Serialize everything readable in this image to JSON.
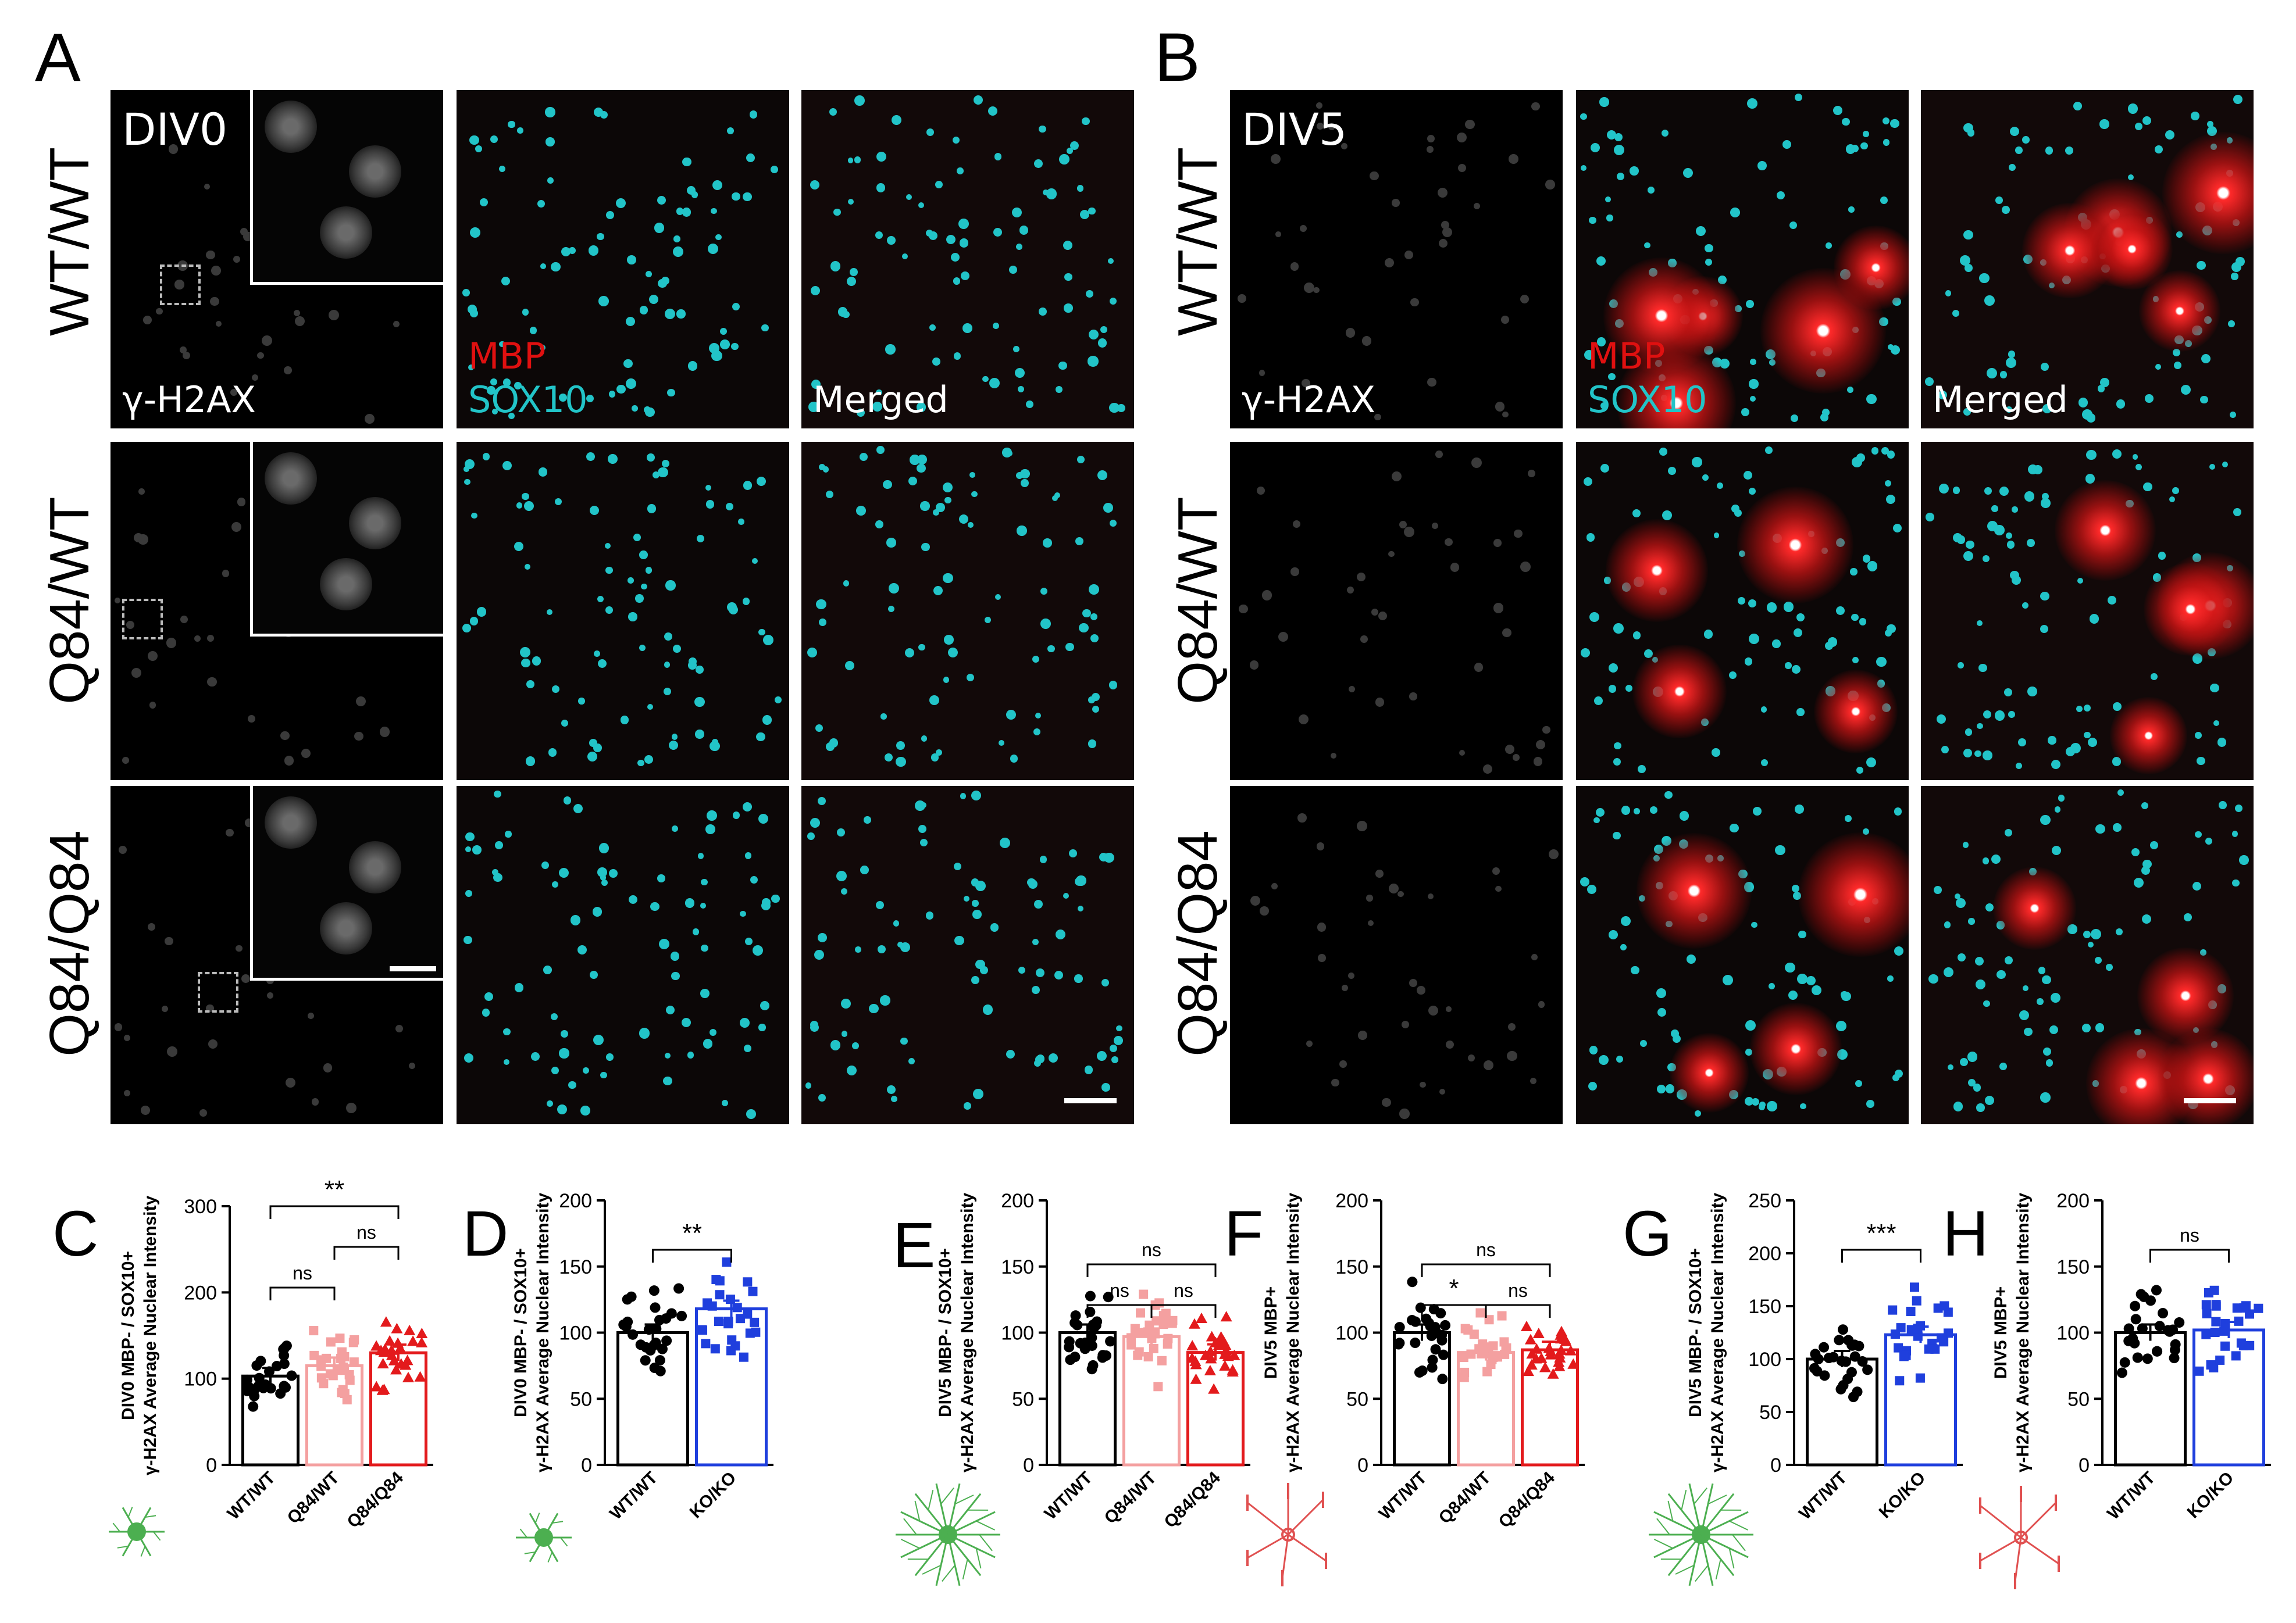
{
  "panels": {
    "A": "A",
    "B": "B",
    "C": "C",
    "D": "D",
    "E": "E",
    "F": "F",
    "G": "G",
    "H": "H"
  },
  "image_grid": {
    "A": {
      "timepoint": "DIV0",
      "rows": [
        "WT/WT",
        "Q84/WT",
        "Q84/Q84"
      ],
      "channels": {
        "gamma": "γ-H2AX",
        "mbp": "MBP",
        "sox": "SOX10",
        "merged": "Merged"
      }
    },
    "B": {
      "timepoint": "DIV5",
      "rows": [
        "WT/WT",
        "Q84/WT",
        "Q84/Q84"
      ],
      "channels": {
        "gamma": "γ-H2AX",
        "mbp": "MBP",
        "sox": "SOX10",
        "merged": "Merged"
      }
    },
    "colors": {
      "mbp": "#e01010",
      "sox": "#22c4c8",
      "label": "#ffffff"
    }
  },
  "chart_data": [
    {
      "panel": "C",
      "type": "bar",
      "ylabel_line1": "DIV0 MBP- / SOX10+",
      "ylabel_line2": "γ-H2AX Average Nuclear Intensity",
      "ylim": [
        0,
        300
      ],
      "yticks": [
        "0",
        "100",
        "200",
        "300"
      ],
      "categories": [
        "WT/WT",
        "Q84/WT",
        "Q84/Q84"
      ],
      "values": [
        103,
        115,
        130
      ],
      "colors": [
        "#000000",
        "#f4a0a0",
        "#e31a1c"
      ],
      "markers": [
        "circle",
        "square",
        "triangle"
      ],
      "significance": [
        {
          "from": 0,
          "to": 1,
          "label": "ns",
          "level": 0
        },
        {
          "from": 1,
          "to": 2,
          "label": "ns",
          "level": 1
        },
        {
          "from": 0,
          "to": 2,
          "label": "**",
          "level": 2
        }
      ],
      "icon": "green-oligodendrocyte-precursor"
    },
    {
      "panel": "D",
      "type": "bar",
      "ylabel_line1": "DIV0 MBP- / SOX10+",
      "ylabel_line2": "γ-H2AX Average Nuclear Intensity",
      "ylim": [
        0,
        200
      ],
      "yticks": [
        "0",
        "50",
        "100",
        "150",
        "200"
      ],
      "categories": [
        "WT/WT",
        "KO/KO"
      ],
      "values": [
        100,
        118
      ],
      "colors": [
        "#000000",
        "#1f3fdd"
      ],
      "markers": [
        "circle",
        "square"
      ],
      "significance": [
        {
          "from": 0,
          "to": 1,
          "label": "**",
          "level": 0
        }
      ],
      "icon": "green-oligodendrocyte-precursor"
    },
    {
      "panel": "E",
      "type": "bar",
      "ylabel_line1": "DIV5 MBP- / SOX10+",
      "ylabel_line2": "γ-H2AX Average Nuclear Intensity",
      "ylim": [
        0,
        200
      ],
      "yticks": [
        "0",
        "50",
        "100",
        "150",
        "200"
      ],
      "categories": [
        "WT/WT",
        "Q84/WT",
        "Q84/Q84"
      ],
      "values": [
        100,
        97,
        85
      ],
      "colors": [
        "#000000",
        "#f4a0a0",
        "#e31a1c"
      ],
      "markers": [
        "circle",
        "square",
        "triangle"
      ],
      "significance": [
        {
          "from": 0,
          "to": 1,
          "label": "ns",
          "level": 0
        },
        {
          "from": 1,
          "to": 2,
          "label": "ns",
          "level": 0
        },
        {
          "from": 0,
          "to": 2,
          "label": "ns",
          "level": 1
        }
      ],
      "icon": "green-oligodendrocyte"
    },
    {
      "panel": "F",
      "type": "bar",
      "ylabel_line1": "DIV5 MBP+",
      "ylabel_line2": "γ-H2AX Average Nuclear Intensity",
      "ylim": [
        0,
        200
      ],
      "yticks": [
        "0",
        "50",
        "100",
        "150",
        "200"
      ],
      "categories": [
        "WT/WT",
        "Q84/WT",
        "Q84/Q84"
      ],
      "values": [
        100,
        85,
        87
      ],
      "colors": [
        "#000000",
        "#f4a0a0",
        "#e31a1c"
      ],
      "markers": [
        "circle",
        "square",
        "triangle"
      ],
      "significance": [
        {
          "from": 0,
          "to": 1,
          "label": "*",
          "level": 0
        },
        {
          "from": 1,
          "to": 2,
          "label": "ns",
          "level": 0
        },
        {
          "from": 0,
          "to": 2,
          "label": "ns",
          "level": 1
        }
      ],
      "icon": "red-mature-oligodendrocyte"
    },
    {
      "panel": "G",
      "type": "bar",
      "ylabel_line1": "DIV5 MBP- / SOX10+",
      "ylabel_line2": "γ-H2AX Average Nuclear Intensity",
      "ylim": [
        0,
        250
      ],
      "yticks": [
        "0",
        "50",
        "100",
        "150",
        "200",
        "250"
      ],
      "categories": [
        "WT/WT",
        "KO/KO"
      ],
      "values": [
        100,
        123
      ],
      "colors": [
        "#000000",
        "#1f3fdd"
      ],
      "markers": [
        "circle",
        "square"
      ],
      "significance": [
        {
          "from": 0,
          "to": 1,
          "label": "***",
          "level": 0
        }
      ],
      "icon": "green-oligodendrocyte"
    },
    {
      "panel": "H",
      "type": "bar",
      "ylabel_line1": "DIV5 MBP+",
      "ylabel_line2": "γ-H2AX Average Nuclear Intensity",
      "ylim": [
        0,
        200
      ],
      "yticks": [
        "0",
        "50",
        "100",
        "150",
        "200"
      ],
      "categories": [
        "WT/WT",
        "KO/KO"
      ],
      "values": [
        100,
        102
      ],
      "colors": [
        "#000000",
        "#1f3fdd"
      ],
      "markers": [
        "circle",
        "square"
      ],
      "significance": [
        {
          "from": 0,
          "to": 1,
          "label": "ns",
          "level": 0
        }
      ],
      "icon": "red-mature-oligodendrocyte"
    }
  ]
}
